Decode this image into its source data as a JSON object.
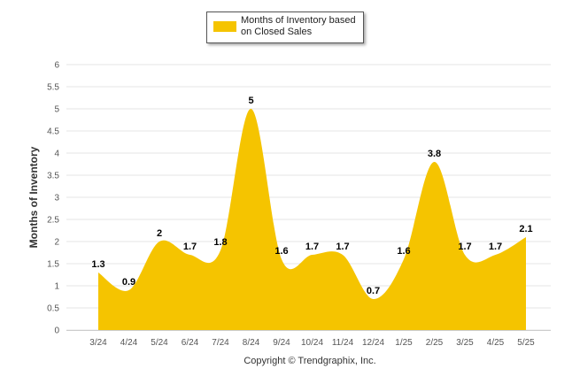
{
  "chart_data": {
    "type": "area",
    "categories": [
      "3/24",
      "4/24",
      "5/24",
      "6/24",
      "7/24",
      "8/24",
      "9/24",
      "10/24",
      "11/24",
      "12/24",
      "1/25",
      "2/25",
      "3/25",
      "4/25",
      "5/25"
    ],
    "series": [
      {
        "name": "Months of Inventory based on Closed Sales",
        "values": [
          1.3,
          0.9,
          2,
          1.7,
          1.8,
          5,
          1.6,
          1.7,
          1.7,
          0.7,
          1.6,
          3.8,
          1.7,
          1.7,
          2.1
        ],
        "data_labels": [
          "1.3",
          "0.9",
          "2",
          "1.7",
          "1.8",
          "5",
          "1.6",
          "1.7",
          "1.7",
          "0.7",
          "1.6",
          "3.8",
          "1.7",
          "1.7",
          "2.1"
        ]
      }
    ],
    "title": "",
    "xlabel": "",
    "ylabel": "Months of Inventory",
    "ylim": [
      0,
      6
    ],
    "yticks": [
      "0",
      "0.5",
      "1",
      "1.5",
      "2",
      "2.5",
      "3",
      "3.5",
      "4",
      "4.5",
      "5",
      "5.5",
      "6"
    ],
    "grid": "horizontal",
    "legend_position": "top-center",
    "colors": {
      "fill": "#F5C400",
      "grid": "#E6E6E6",
      "axis_text": "#555555",
      "label_text": "#000000"
    }
  },
  "legend": {
    "label": "Months of Inventory based on Closed Sales"
  },
  "footer": {
    "copyright": "Copyright © Trendgraphix, Inc."
  }
}
